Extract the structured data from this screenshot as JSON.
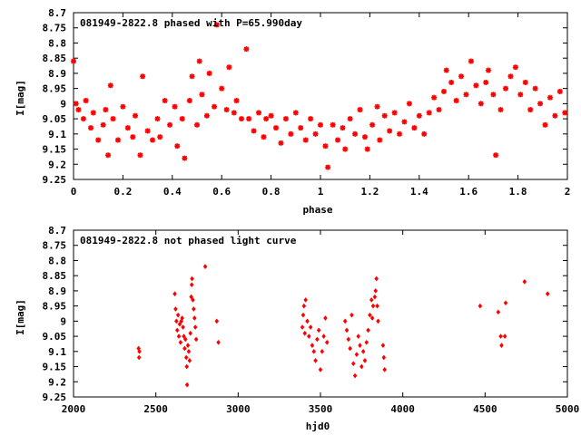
{
  "colors": {
    "series": "#ff0000",
    "axis": "#000000",
    "background": "#ffffff"
  },
  "chart_data": [
    {
      "type": "scatter",
      "title": "081949-2822.8 phased with P=65.990day",
      "xlabel": "phase",
      "ylabel": "I[mag]",
      "xlim": [
        0,
        2
      ],
      "ylim": [
        9.25,
        8.7
      ],
      "y_inverted": true,
      "grid": false,
      "x_ticks": [
        0,
        0.2,
        0.4,
        0.6,
        0.8,
        1,
        1.2,
        1.4,
        1.6,
        1.8,
        2
      ],
      "x_tick_labels": [
        "0",
        "0.2",
        "0.4",
        "0.6",
        "0.8",
        "1",
        "1.2",
        "1.4",
        "1.6",
        "1.8",
        "2"
      ],
      "y_ticks": [
        8.7,
        8.75,
        8.8,
        8.85,
        8.9,
        8.95,
        9,
        9.05,
        9.1,
        9.15,
        9.2,
        9.25
      ],
      "y_tick_labels": [
        "8.7",
        "8.75",
        "8.8",
        "8.85",
        "8.9",
        "8.95",
        "9",
        "9.05",
        "9.1",
        "9.15",
        "9.2",
        "9.25"
      ],
      "marker": "star",
      "points": [
        [
          0.0,
          8.86
        ],
        [
          0.01,
          9.0
        ],
        [
          0.02,
          9.02
        ],
        [
          0.04,
          9.05
        ],
        [
          0.05,
          8.99
        ],
        [
          0.07,
          9.08
        ],
        [
          0.08,
          9.03
        ],
        [
          0.1,
          9.12
        ],
        [
          0.12,
          9.07
        ],
        [
          0.13,
          9.02
        ],
        [
          0.14,
          9.17
        ],
        [
          0.15,
          8.94
        ],
        [
          0.16,
          9.05
        ],
        [
          0.18,
          9.12
        ],
        [
          0.2,
          9.01
        ],
        [
          0.22,
          9.08
        ],
        [
          0.24,
          9.11
        ],
        [
          0.25,
          9.04
        ],
        [
          0.27,
          9.17
        ],
        [
          0.28,
          8.91
        ],
        [
          0.3,
          9.09
        ],
        [
          0.32,
          9.12
        ],
        [
          0.34,
          9.05
        ],
        [
          0.35,
          9.11
        ],
        [
          0.37,
          8.99
        ],
        [
          0.39,
          9.07
        ],
        [
          0.41,
          9.01
        ],
        [
          0.42,
          9.14
        ],
        [
          0.44,
          9.05
        ],
        [
          0.45,
          9.18
        ],
        [
          0.47,
          8.99
        ],
        [
          0.48,
          8.91
        ],
        [
          0.5,
          9.07
        ],
        [
          0.51,
          8.86
        ],
        [
          0.52,
          8.97
        ],
        [
          0.54,
          9.04
        ],
        [
          0.55,
          8.9
        ],
        [
          0.57,
          9.01
        ],
        [
          0.58,
          8.74
        ],
        [
          0.6,
          8.95
        ],
        [
          0.62,
          9.02
        ],
        [
          0.63,
          8.88
        ],
        [
          0.65,
          9.03
        ],
        [
          0.66,
          8.99
        ],
        [
          0.68,
          9.05
        ],
        [
          0.7,
          8.82
        ],
        [
          0.71,
          9.05
        ],
        [
          0.73,
          9.09
        ],
        [
          0.75,
          9.03
        ],
        [
          0.77,
          9.11
        ],
        [
          0.78,
          9.05
        ],
        [
          0.8,
          9.04
        ],
        [
          0.82,
          9.08
        ],
        [
          0.84,
          9.13
        ],
        [
          0.86,
          9.05
        ],
        [
          0.88,
          9.1
        ],
        [
          0.9,
          9.03
        ],
        [
          0.92,
          9.08
        ],
        [
          0.94,
          9.12
        ],
        [
          0.96,
          9.05
        ],
        [
          0.98,
          9.1
        ],
        [
          1.0,
          9.07
        ],
        [
          1.02,
          9.14
        ],
        [
          1.03,
          9.21
        ],
        [
          1.05,
          9.07
        ],
        [
          1.07,
          9.12
        ],
        [
          1.09,
          9.08
        ],
        [
          1.1,
          9.15
        ],
        [
          1.12,
          9.05
        ],
        [
          1.14,
          9.1
        ],
        [
          1.16,
          9.02
        ],
        [
          1.18,
          9.11
        ],
        [
          1.19,
          9.15
        ],
        [
          1.21,
          9.07
        ],
        [
          1.23,
          9.01
        ],
        [
          1.24,
          9.12
        ],
        [
          1.26,
          9.04
        ],
        [
          1.28,
          9.09
        ],
        [
          1.3,
          9.03
        ],
        [
          1.32,
          9.1
        ],
        [
          1.34,
          9.06
        ],
        [
          1.36,
          9.0
        ],
        [
          1.38,
          9.08
        ],
        [
          1.4,
          9.04
        ],
        [
          1.42,
          9.1
        ],
        [
          1.44,
          9.03
        ],
        [
          1.46,
          8.98
        ],
        [
          1.48,
          9.02
        ],
        [
          1.5,
          8.96
        ],
        [
          1.51,
          8.89
        ],
        [
          1.53,
          8.93
        ],
        [
          1.55,
          8.99
        ],
        [
          1.57,
          8.91
        ],
        [
          1.59,
          8.97
        ],
        [
          1.61,
          8.86
        ],
        [
          1.63,
          8.94
        ],
        [
          1.65,
          9.0
        ],
        [
          1.67,
          8.93
        ],
        [
          1.68,
          8.89
        ],
        [
          1.7,
          8.97
        ],
        [
          1.71,
          9.17
        ],
        [
          1.73,
          9.02
        ],
        [
          1.75,
          8.95
        ],
        [
          1.77,
          8.91
        ],
        [
          1.79,
          8.88
        ],
        [
          1.81,
          8.97
        ],
        [
          1.83,
          8.93
        ],
        [
          1.85,
          9.02
        ],
        [
          1.87,
          8.95
        ],
        [
          1.89,
          9.0
        ],
        [
          1.91,
          9.07
        ],
        [
          1.93,
          8.98
        ],
        [
          1.95,
          9.04
        ],
        [
          1.97,
          8.96
        ],
        [
          1.99,
          9.03
        ]
      ]
    },
    {
      "type": "scatter",
      "title": "081949-2822.8 not phased light curve",
      "xlabel": "hjd0",
      "ylabel": "I[mag]",
      "xlim": [
        2000,
        5000
      ],
      "ylim": [
        9.25,
        8.7
      ],
      "y_inverted": true,
      "grid": false,
      "x_ticks": [
        2000,
        2500,
        3000,
        3500,
        4000,
        4500,
        5000
      ],
      "x_tick_labels": [
        "2000",
        "2500",
        "3000",
        "3500",
        "4000",
        "4500",
        "5000"
      ],
      "y_ticks": [
        8.7,
        8.75,
        8.8,
        8.85,
        8.9,
        8.95,
        9,
        9.05,
        9.1,
        9.15,
        9.2,
        9.25
      ],
      "y_tick_labels": [
        "8.7",
        "8.75",
        "8.8",
        "8.85",
        "8.9",
        "8.95",
        "9",
        "9.05",
        "9.1",
        "9.15",
        "9.2",
        "9.25"
      ],
      "marker": "diamond",
      "points": [
        [
          2395,
          9.09
        ],
        [
          2398,
          9.12
        ],
        [
          2400,
          9.1
        ],
        [
          2615,
          8.91
        ],
        [
          2620,
          8.96
        ],
        [
          2625,
          9.0
        ],
        [
          2630,
          9.03
        ],
        [
          2635,
          8.98
        ],
        [
          2640,
          9.05
        ],
        [
          2645,
          9.01
        ],
        [
          2650,
          9.07
        ],
        [
          2655,
          9.0
        ],
        [
          2660,
          8.99
        ],
        [
          2665,
          9.02
        ],
        [
          2670,
          9.05
        ],
        [
          2675,
          9.09
        ],
        [
          2680,
          9.06
        ],
        [
          2685,
          9.12
        ],
        [
          2688,
          9.15
        ],
        [
          2690,
          9.21
        ],
        [
          2695,
          9.08
        ],
        [
          2700,
          9.1
        ],
        [
          2705,
          9.13
        ],
        [
          2710,
          9.04
        ],
        [
          2715,
          8.92
        ],
        [
          2718,
          8.88
        ],
        [
          2720,
          8.86
        ],
        [
          2725,
          8.93
        ],
        [
          2730,
          8.96
        ],
        [
          2735,
          8.99
        ],
        [
          2740,
          9.02
        ],
        [
          2745,
          9.06
        ],
        [
          2800,
          8.82
        ],
        [
          2870,
          9.0
        ],
        [
          2880,
          9.07
        ],
        [
          3390,
          9.02
        ],
        [
          3395,
          8.98
        ],
        [
          3400,
          8.95
        ],
        [
          3405,
          9.04
        ],
        [
          3410,
          8.93
        ],
        [
          3420,
          9.0
        ],
        [
          3430,
          9.05
        ],
        [
          3440,
          9.02
        ],
        [
          3450,
          9.08
        ],
        [
          3460,
          9.1
        ],
        [
          3470,
          9.13
        ],
        [
          3480,
          9.06
        ],
        [
          3490,
          9.03
        ],
        [
          3500,
          9.16
        ],
        [
          3510,
          9.1
        ],
        [
          3520,
          9.05
        ],
        [
          3530,
          8.99
        ],
        [
          3540,
          9.07
        ],
        [
          3650,
          9.0
        ],
        [
          3660,
          9.03
        ],
        [
          3670,
          9.06
        ],
        [
          3680,
          9.09
        ],
        [
          3690,
          8.98
        ],
        [
          3700,
          9.14
        ],
        [
          3710,
          9.18
        ],
        [
          3720,
          9.11
        ],
        [
          3730,
          9.05
        ],
        [
          3740,
          9.08
        ],
        [
          3750,
          9.15
        ],
        [
          3760,
          9.1
        ],
        [
          3770,
          9.13
        ],
        [
          3780,
          9.07
        ],
        [
          3790,
          9.03
        ],
        [
          3800,
          8.98
        ],
        [
          3810,
          8.93
        ],
        [
          3815,
          8.99
        ],
        [
          3820,
          8.95
        ],
        [
          3830,
          8.92
        ],
        [
          3835,
          8.9
        ],
        [
          3840,
          8.86
        ],
        [
          3845,
          8.95
        ],
        [
          3850,
          9.0
        ],
        [
          3880,
          9.08
        ],
        [
          3885,
          9.12
        ],
        [
          3890,
          9.16
        ],
        [
          4470,
          8.95
        ],
        [
          4580,
          8.97
        ],
        [
          4595,
          9.05
        ],
        [
          4600,
          9.08
        ],
        [
          4620,
          9.05
        ],
        [
          4625,
          8.94
        ],
        [
          4740,
          8.87
        ],
        [
          4880,
          8.91
        ]
      ]
    }
  ]
}
